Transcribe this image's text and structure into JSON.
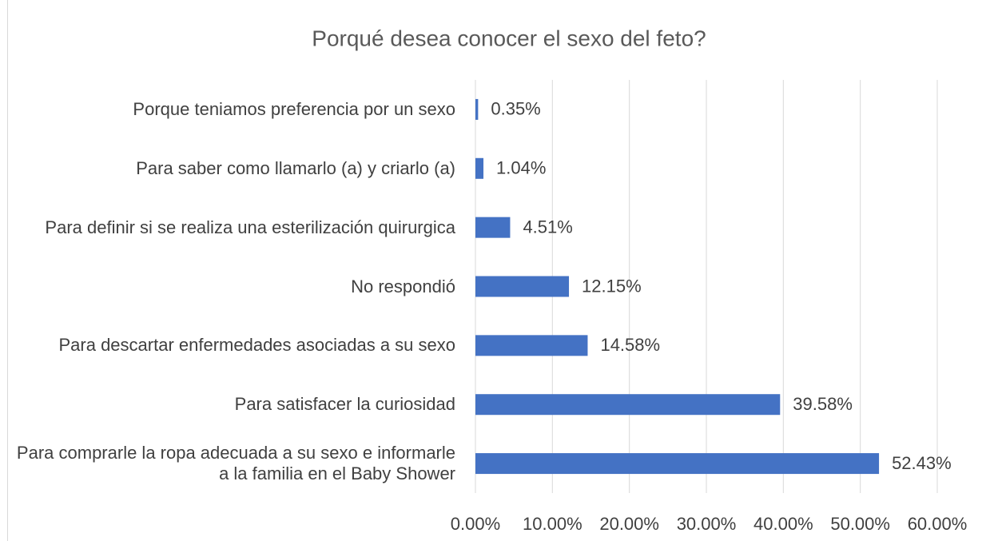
{
  "chart_data": {
    "type": "bar",
    "orientation": "horizontal",
    "title": "Porqué desea conocer el sexo del feto?",
    "categories": [
      "Porque teniamos preferencia por un sexo",
      "Para saber como llamarlo (a) y criarlo (a)",
      "Para definir si se realiza una esterilización quirurgica",
      "No respondió",
      "Para descartar enfermedades asociadas a su sexo",
      "Para satisfacer la curiosidad",
      "Para comprarle la ropa adecuada a su sexo e informarle a la familia en el Baby  Shower"
    ],
    "values": [
      0.35,
      1.04,
      4.51,
      12.15,
      14.58,
      39.58,
      52.43
    ],
    "value_labels": [
      "0.35%",
      "1.04%",
      "4.51%",
      "12.15%",
      "14.58%",
      "39.58%",
      "52.43%"
    ],
    "color": "#4472c4",
    "xlim": [
      0,
      60
    ],
    "xticks": [
      {
        "value": 0,
        "label": "0.00%"
      },
      {
        "value": 10,
        "label": "10.00%"
      },
      {
        "value": 20,
        "label": "20.00%"
      },
      {
        "value": 30,
        "label": "30.00%"
      },
      {
        "value": 40,
        "label": "40.00%"
      },
      {
        "value": 50,
        "label": "50.00%"
      },
      {
        "value": 60,
        "label": "60.00%"
      }
    ],
    "grid": true
  }
}
